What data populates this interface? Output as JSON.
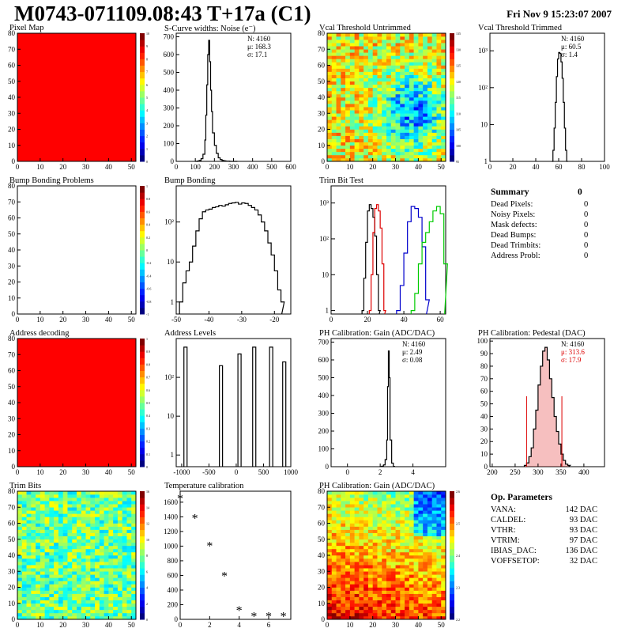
{
  "header": {
    "title": "M0743-071109.08:43 T+17a (C1)",
    "timestamp": "Fri Nov  9 15:23:07 2007"
  },
  "colors": {
    "red_fill": "#ff0000",
    "black": "#000000",
    "blue": "#0000cc",
    "green": "#00cc00",
    "red": "#dd0000"
  },
  "panels": [
    {
      "key": "pixel_map",
      "title": "Pixel Map",
      "type": "heatmap",
      "fill": "uniform-red",
      "x_ticks": [
        "0",
        "10",
        "20",
        "30",
        "40",
        "50"
      ],
      "y_ticks": [
        "0",
        "10",
        "20",
        "30",
        "40",
        "50",
        "60",
        "70",
        "80"
      ],
      "palette_ticks": [
        "0",
        "1",
        "2",
        "3",
        "4",
        "5",
        "6",
        "7",
        "8",
        "9",
        "10"
      ]
    },
    {
      "key": "scurve",
      "title": "S-Curve widths: Noise (e⁻)",
      "type": "histogram",
      "x_ticks": [
        "0",
        "100",
        "200",
        "300",
        "400",
        "500",
        "600"
      ],
      "y_ticks": [
        "0",
        "100",
        "200",
        "300",
        "400",
        "500",
        "600",
        "700"
      ],
      "stats": [
        "N: 4160",
        "μ: 168.3",
        "σ: 17.1"
      ],
      "chart_data": {
        "type": "histogram",
        "xlim": [
          0,
          600
        ],
        "ylim": [
          0,
          720
        ],
        "x": [
          100,
          110,
          120,
          130,
          140,
          150,
          155,
          160,
          165,
          170,
          175,
          180,
          185,
          190,
          200,
          210,
          220,
          230,
          240,
          250,
          260,
          280,
          300
        ],
        "values": [
          0,
          2,
          5,
          15,
          40,
          120,
          260,
          430,
          600,
          680,
          560,
          400,
          280,
          160,
          90,
          45,
          20,
          10,
          5,
          3,
          1,
          0,
          0
        ]
      }
    },
    {
      "key": "vcal_untrimmed",
      "title": "Vcal Threshold Untrimmed",
      "type": "heatmap",
      "fill": "noise-jet",
      "x_ticks": [
        "0",
        "10",
        "20",
        "30",
        "40",
        "50"
      ],
      "y_ticks": [
        "0",
        "10",
        "20",
        "30",
        "40",
        "50",
        "60",
        "70",
        "80"
      ],
      "palette_ticks": [
        "95",
        "100",
        "105",
        "110",
        "115",
        "120",
        "125",
        "130",
        "135"
      ]
    },
    {
      "key": "vcal_trimmed",
      "title": "Vcal Threshold Trimmed",
      "type": "histogram",
      "log": true,
      "x_ticks": [
        "0",
        "20",
        "40",
        "60",
        "80",
        "100"
      ],
      "y_ticks": [
        "1",
        "10",
        "10²",
        "10³"
      ],
      "stats": [
        "N: 4160",
        "μ: 60.5",
        "σ:  1.4"
      ],
      "chart_data": {
        "type": "histogram",
        "log": true,
        "xlim": [
          0,
          100
        ],
        "ylim": [
          1,
          3000
        ],
        "x": [
          54,
          55,
          56,
          57,
          58,
          59,
          60,
          61,
          62,
          63,
          64,
          65,
          66,
          67
        ],
        "values": [
          1,
          2,
          8,
          40,
          200,
          600,
          900,
          850,
          500,
          180,
          40,
          8,
          2,
          1
        ]
      }
    },
    {
      "key": "bump_problems",
      "title": "Bump Bonding Problems",
      "type": "heatmap",
      "fill": "empty",
      "x_ticks": [
        "0",
        "10",
        "20",
        "30",
        "40",
        "50"
      ],
      "y_ticks": [
        "0",
        "10",
        "20",
        "30",
        "40",
        "50",
        "60",
        "70",
        "80"
      ],
      "palette_ticks": [
        "-1",
        "-0.8",
        "-0.6",
        "-0.4",
        "-0.2",
        "0",
        "0.2",
        "0.4",
        "0.6",
        "0.8",
        "1"
      ]
    },
    {
      "key": "bump_bonding",
      "title": "Bump Bonding",
      "type": "histogram",
      "log": true,
      "x_ticks": [
        "-50",
        "-40",
        "-30",
        "-20"
      ],
      "y_ticks": [
        "1",
        "10",
        "10²"
      ],
      "chart_data": {
        "type": "histogram",
        "log": true,
        "xlim": [
          -50,
          -15
        ],
        "ylim": [
          0.5,
          800
        ],
        "x": [
          -49,
          -48,
          -47,
          -46,
          -45,
          -44,
          -43,
          -42,
          -41,
          -40,
          -39,
          -38,
          -37,
          -36,
          -35,
          -34,
          -33,
          -32,
          -31,
          -30,
          -29,
          -28,
          -27,
          -26,
          -25,
          -24,
          -23,
          -22,
          -21,
          -20,
          -19,
          -18
        ],
        "values": [
          1,
          3,
          6,
          10,
          25,
          60,
          120,
          180,
          200,
          210,
          230,
          240,
          260,
          250,
          270,
          290,
          300,
          310,
          280,
          300,
          290,
          260,
          230,
          200,
          150,
          100,
          60,
          30,
          15,
          6,
          2,
          1
        ]
      }
    },
    {
      "key": "trim_bit",
      "title": "Trim Bit Test",
      "type": "histogram",
      "log": true,
      "x_ticks": [
        "0",
        "20",
        "40",
        "60"
      ],
      "y_ticks": [
        "1",
        "10",
        "10²",
        "10³"
      ],
      "chart_data": {
        "type": "histogram",
        "log": true,
        "xlim": [
          0,
          63
        ],
        "ylim": [
          0.8,
          3000
        ],
        "series": [
          {
            "color": "#000000",
            "x": [
              17,
              18,
              19,
              20,
              21,
              22,
              23,
              24,
              25,
              26
            ],
            "values": [
              1,
              8,
              80,
              600,
              900,
              700,
              400,
              120,
              10,
              1
            ]
          },
          {
            "color": "#dd0000",
            "x": [
              21,
              22,
              23,
              24,
              25,
              26,
              27,
              28,
              29
            ],
            "values": [
              1,
              10,
              150,
              700,
              900,
              600,
              200,
              20,
              1
            ]
          },
          {
            "color": "#0000cc",
            "x": [
              36,
              38,
              40,
              42,
              44,
              46,
              48,
              50,
              52
            ],
            "values": [
              1,
              5,
              40,
              300,
              800,
              700,
              400,
              60,
              2
            ]
          },
          {
            "color": "#00cc00",
            "x": [
              44,
              46,
              48,
              50,
              52,
              54,
              56,
              58,
              60,
              62
            ],
            "values": [
              1,
              3,
              20,
              80,
              150,
              300,
              600,
              800,
              500,
              20
            ]
          }
        ]
      }
    },
    {
      "key": "address_decoding",
      "title": "Address decoding",
      "type": "heatmap",
      "fill": "uniform-red",
      "x_ticks": [
        "0",
        "10",
        "20",
        "30",
        "40",
        "50"
      ],
      "y_ticks": [
        "0",
        "10",
        "20",
        "30",
        "40",
        "50",
        "60",
        "70",
        "80"
      ],
      "palette_ticks": [
        "0",
        "0.1",
        "0.2",
        "0.3",
        "0.4",
        "0.5",
        "0.6",
        "0.7",
        "0.8",
        "0.9",
        "1"
      ]
    },
    {
      "key": "address_levels",
      "title": "Address Levels",
      "type": "histogram",
      "log": true,
      "x_ticks": [
        "-1000",
        "-500",
        "0",
        "500",
        "1000"
      ],
      "y_ticks": [
        "1",
        "10",
        "10²"
      ],
      "chart_data": {
        "type": "spikes",
        "log": true,
        "xlim": [
          -1100,
          1000
        ],
        "ylim": [
          0.5,
          1000
        ],
        "peaks": [
          {
            "x": -930,
            "v": 600
          },
          {
            "x": -280,
            "v": 200
          },
          {
            "x": 60,
            "v": 400
          },
          {
            "x": 330,
            "v": 600
          },
          {
            "x": 640,
            "v": 600
          },
          {
            "x": 880,
            "v": 250
          }
        ]
      }
    },
    {
      "key": "ph_gain",
      "title": "PH Calibration: Gain (ADC/DAC)",
      "type": "histogram",
      "x_ticks": [
        "0",
        "2",
        "4"
      ],
      "y_ticks": [
        "0",
        "100",
        "200",
        "300",
        "400",
        "500",
        "600",
        "700"
      ],
      "stats": [
        "N: 4160",
        "μ: 2.49",
        "σ: 0.08"
      ],
      "chart_data": {
        "type": "histogram",
        "xlim": [
          -1,
          6
        ],
        "ylim": [
          0,
          720
        ],
        "x": [
          2.0,
          2.1,
          2.2,
          2.3,
          2.4,
          2.45,
          2.5,
          2.55,
          2.6,
          2.7,
          2.8
        ],
        "values": [
          1,
          3,
          10,
          40,
          150,
          450,
          650,
          500,
          150,
          20,
          2
        ]
      }
    },
    {
      "key": "ph_pedestal",
      "title": "PH Calibration: Pedestal (DAC)",
      "type": "histogram",
      "x_ticks": [
        "200",
        "250",
        "300",
        "350",
        "400"
      ],
      "y_ticks": [
        "0",
        "10",
        "20",
        "30",
        "40",
        "50",
        "60",
        "70",
        "80",
        "90",
        "100"
      ],
      "stats": [
        "N: 4160",
        "μ: 313.6",
        "σ: 17.9"
      ],
      "chart_data": {
        "type": "histogram",
        "xlim": [
          195,
          445
        ],
        "ylim": [
          0,
          102
        ],
        "x": [
          270,
          275,
          280,
          285,
          290,
          295,
          300,
          305,
          310,
          315,
          320,
          325,
          330,
          335,
          340,
          345,
          350,
          355,
          360,
          365
        ],
        "values": [
          1,
          3,
          8,
          15,
          30,
          45,
          65,
          80,
          92,
          95,
          85,
          70,
          55,
          40,
          28,
          18,
          10,
          5,
          2,
          1
        ],
        "markers": [
          275,
          352
        ]
      }
    },
    {
      "key": "trim_bits",
      "title": "Trim Bits",
      "type": "heatmap",
      "fill": "noise-trim",
      "x_ticks": [
        "0",
        "10",
        "20",
        "30",
        "40",
        "50"
      ],
      "y_ticks": [
        "0",
        "10",
        "20",
        "30",
        "40",
        "50",
        "60",
        "70",
        "80"
      ],
      "palette_ticks": [
        "0",
        "2",
        "4",
        "6",
        "8",
        "10",
        "12",
        "14",
        "16"
      ]
    },
    {
      "key": "temperature",
      "title": "Temperature calibration",
      "type": "scatter",
      "x_ticks": [
        "0",
        "2",
        "4",
        "6"
      ],
      "y_ticks": [
        "0",
        "200",
        "400",
        "600",
        "800",
        "1000",
        "1200",
        "1400",
        "1600"
      ],
      "chart_data": {
        "type": "scatter",
        "xlim": [
          0,
          7.5
        ],
        "ylim": [
          0,
          1750
        ],
        "x": [
          0,
          1,
          2,
          3,
          4,
          5,
          6,
          7
        ],
        "values": [
          1660,
          1390,
          1010,
          600,
          130,
          50,
          50,
          50
        ]
      }
    },
    {
      "key": "ph_gain_map",
      "title": "PH Calibration: Gain (ADC/DAC)",
      "type": "heatmap",
      "fill": "noise-gain",
      "x_ticks": [
        "0",
        "10",
        "20",
        "30",
        "40",
        "50"
      ],
      "y_ticks": [
        "0",
        "10",
        "20",
        "30",
        "40",
        "50",
        "60",
        "70",
        "80"
      ],
      "palette_ticks": [
        "2.2",
        "2.3",
        "2.4",
        "2.5",
        "2.6"
      ]
    }
  ],
  "summary": {
    "title": "Summary",
    "total": "0",
    "rows": [
      {
        "label": "Dead Pixels:",
        "value": "0"
      },
      {
        "label": "Noisy Pixels:",
        "value": "0"
      },
      {
        "label": "Mask defects:",
        "value": "0"
      },
      {
        "label": "Dead Bumps:",
        "value": "0"
      },
      {
        "label": "Dead Trimbits:",
        "value": "0"
      },
      {
        "label": "Address Probl:",
        "value": "0"
      }
    ]
  },
  "op_params": {
    "title": "Op. Parameters",
    "rows": [
      {
        "label": "VANA:",
        "value": "142 DAC"
      },
      {
        "label": "CALDEL:",
        "value": "93 DAC"
      },
      {
        "label": "VTHR:",
        "value": "93 DAC"
      },
      {
        "label": "VTRIM:",
        "value": "97 DAC"
      },
      {
        "label": "IBIAS_DAC:",
        "value": "136 DAC"
      },
      {
        "label": "VOFFSETOP:",
        "value": "32 DAC"
      }
    ]
  }
}
